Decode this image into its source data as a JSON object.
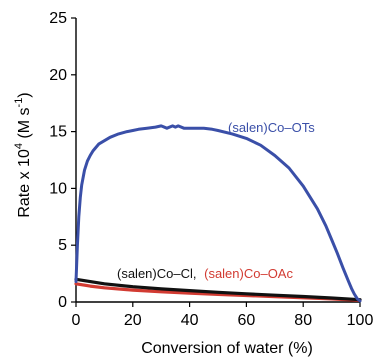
{
  "chart_data": {
    "type": "line",
    "title": "",
    "xlabel": "Conversion of water (%)",
    "ylabel_main": "Rate x 10",
    "ylabel_exponent": "4",
    "ylabel_units": "(M s",
    "ylabel_units_exponent": "-1",
    "ylabel_close": ")",
    "xlim": [
      0,
      100
    ],
    "ylim": [
      0,
      25
    ],
    "xticks": [
      0,
      20,
      40,
      60,
      80,
      100
    ],
    "yticks": [
      0,
      5,
      10,
      15,
      20,
      25
    ],
    "grid": false,
    "annotations": {
      "ots": "(salen)Co–OTs",
      "cl": "(salen)Co–Cl,",
      "oac": "(salen)Co–OAc"
    },
    "series": [
      {
        "name": "(salen)Co–OTs",
        "color": "#3a4fa8",
        "x": [
          0,
          0.5,
          1,
          1.5,
          2,
          3,
          4,
          5,
          6,
          8,
          10,
          12,
          15,
          18,
          20,
          22,
          25,
          28,
          30,
          32,
          34,
          35,
          36,
          38,
          40,
          42,
          45,
          48,
          50,
          55,
          60,
          65,
          70,
          75,
          80,
          85,
          88,
          90,
          92,
          94,
          96,
          97,
          98,
          99,
          100
        ],
        "y": [
          1.8,
          5.0,
          7.5,
          9.2,
          10.3,
          11.6,
          12.4,
          12.9,
          13.3,
          13.9,
          14.2,
          14.5,
          14.8,
          15.0,
          15.1,
          15.2,
          15.3,
          15.4,
          15.5,
          15.3,
          15.5,
          15.4,
          15.5,
          15.3,
          15.3,
          15.3,
          15.3,
          15.2,
          15.1,
          14.8,
          14.4,
          13.8,
          12.9,
          11.8,
          10.2,
          8.2,
          6.7,
          5.5,
          4.3,
          3.0,
          1.8,
          1.2,
          0.7,
          0.3,
          0.1
        ]
      },
      {
        "name": "(salen)Co–Cl",
        "color": "#111111",
        "x": [
          0,
          5,
          10,
          20,
          30,
          40,
          50,
          60,
          70,
          80,
          90,
          95,
          100
        ],
        "y": [
          2.0,
          1.8,
          1.6,
          1.35,
          1.15,
          1.0,
          0.85,
          0.72,
          0.6,
          0.48,
          0.35,
          0.28,
          0.2
        ]
      },
      {
        "name": "(salen)Co–OAc",
        "color": "#d23b32",
        "x": [
          0,
          5,
          10,
          20,
          30,
          40,
          50,
          60,
          70,
          80,
          90,
          95,
          100
        ],
        "y": [
          1.6,
          1.4,
          1.25,
          1.05,
          0.9,
          0.78,
          0.67,
          0.57,
          0.47,
          0.37,
          0.27,
          0.2,
          0.15
        ]
      }
    ]
  }
}
